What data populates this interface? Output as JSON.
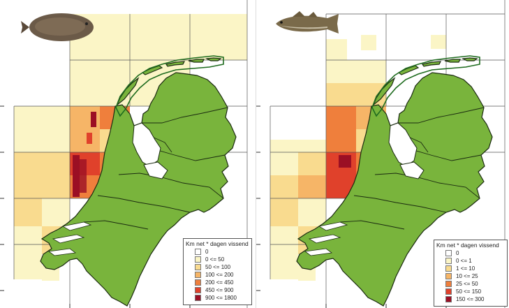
{
  "colors": {
    "land": "#79b43c",
    "land_outline": "#1a2a10",
    "sea": "#ffffff",
    "grid": "#555555",
    "wadden_outline": "#1e6b1e"
  },
  "maps": [
    {
      "species_icon": "flatfish-sole-icon",
      "legend": {
        "title": "Km net * dagen vissend",
        "classes": [
          {
            "label": "0",
            "color": "#ffffff"
          },
          {
            "label": "0 <= 50",
            "color": "#fbf5c6"
          },
          {
            "label": "50 <= 100",
            "color": "#f9db8f"
          },
          {
            "label": "100 <= 200",
            "color": "#f6b567"
          },
          {
            "label": "200 <= 450",
            "color": "#ef7f3c"
          },
          {
            "label": "450 <= 900",
            "color": "#e0412b"
          },
          {
            "label": "900 <= 1800",
            "color": "#9b0f24"
          }
        ]
      }
    },
    {
      "species_icon": "cod-fish-icon",
      "legend": {
        "title": "Km net * dagen vissend",
        "classes": [
          {
            "label": "0",
            "color": "#ffffff"
          },
          {
            "label": "0 <= 1",
            "color": "#fbf5c6"
          },
          {
            "label": "1 <= 10",
            "color": "#f9db8f"
          },
          {
            "label": "10 <= 25",
            "color": "#f6b567"
          },
          {
            "label": "25 <= 50",
            "color": "#ef7f3c"
          },
          {
            "label": "50 <= 150",
            "color": "#e0412b"
          },
          {
            "label": "150 <= 300",
            "color": "#9b0f24"
          }
        ]
      }
    }
  ]
}
